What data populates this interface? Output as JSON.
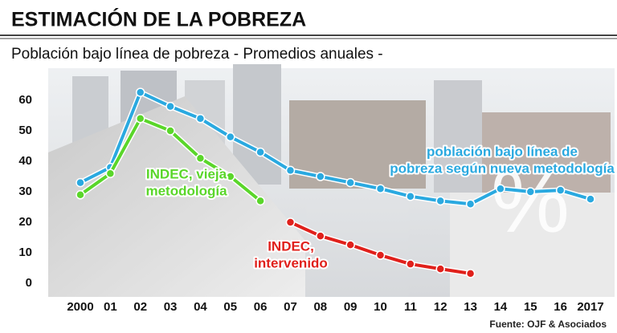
{
  "chart_data": {
    "type": "line",
    "title": "ESTIMACIÓN DE LA POBREZA",
    "subtitle": "Población bajo línea de pobreza - Promedios anuales -",
    "source": "Fuente: OJF & Asociados",
    "watermark": "%",
    "categories": [
      "2000",
      "01",
      "02",
      "03",
      "04",
      "05",
      "06",
      "07",
      "08",
      "09",
      "10",
      "11",
      "12",
      "13",
      "14",
      "15",
      "16",
      "2017"
    ],
    "series": [
      {
        "color": "#2aa9e0",
        "values": [
          33,
          38,
          62.6,
          58,
          54,
          48,
          43,
          37,
          35,
          33,
          31,
          28.5,
          27,
          26,
          31,
          30,
          30.5,
          27.6
        ]
      },
      {
        "color": "#5ad62a",
        "values": [
          29,
          36,
          54,
          50,
          41,
          35,
          27,
          null,
          null,
          null,
          null,
          null,
          null,
          null,
          null,
          null,
          null,
          null
        ]
      },
      {
        "color": "#e0201b",
        "values": [
          null,
          null,
          null,
          null,
          null,
          null,
          null,
          20,
          15.5,
          12.6,
          9.2,
          6.3,
          4.7,
          3.2,
          null,
          null,
          null,
          null
        ]
      }
    ],
    "annotations": [
      {
        "lines": [
          "INDEC, vieja",
          "metodología"
        ],
        "color": "#5ad62a"
      },
      {
        "lines": [
          "INDEC,",
          "intervenido"
        ],
        "color": "#e0201b"
      },
      {
        "lines": [
          "población bajo línea de",
          "pobreza según nueva metodología"
        ],
        "color": "#2aa9e0"
      }
    ],
    "ylim": [
      0,
      65
    ],
    "yticks": [
      0,
      10,
      20,
      30,
      40,
      50,
      60
    ],
    "grid": false
  }
}
